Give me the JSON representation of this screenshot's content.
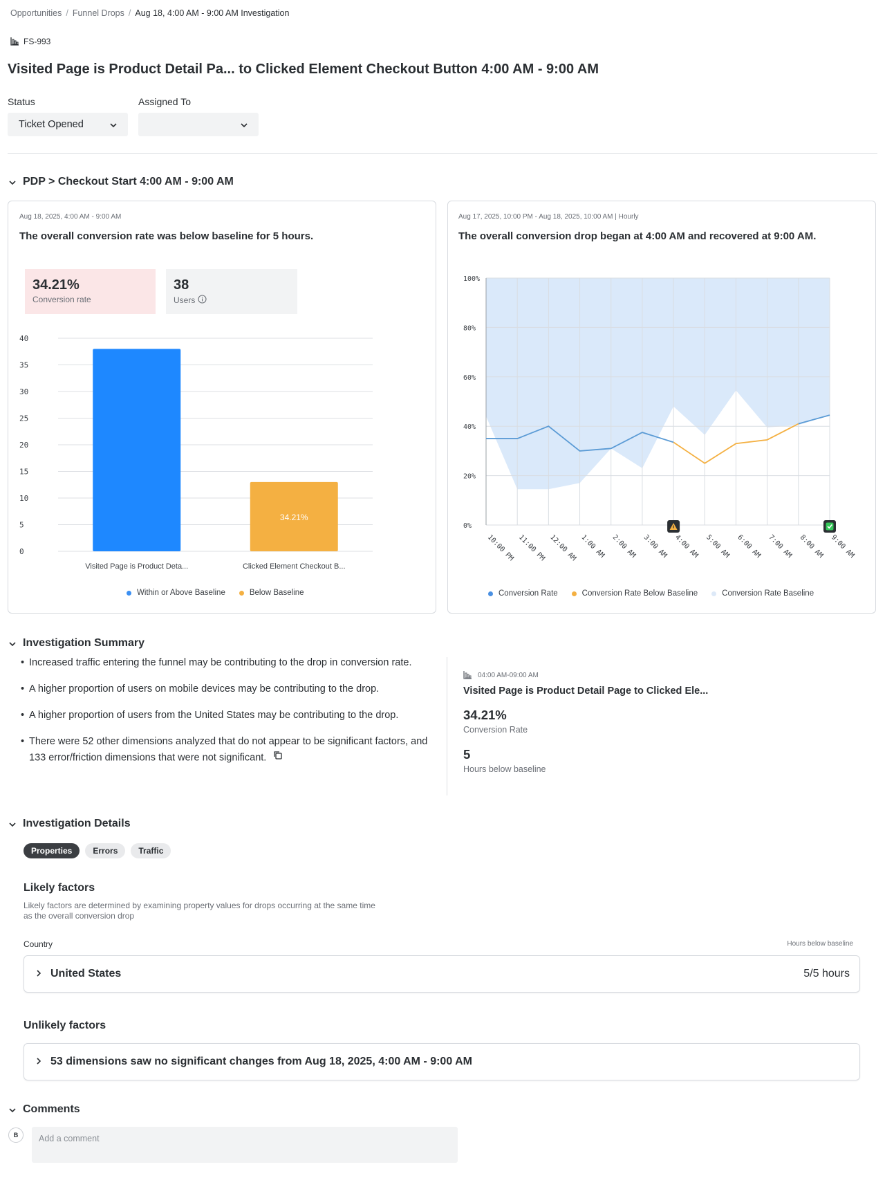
{
  "breadcrumb": {
    "items": [
      "Opportunities",
      "Funnel Drops"
    ],
    "current": "Aug 18, 4:00 AM - 9:00 AM Investigation"
  },
  "ticket": {
    "id": "FS-993"
  },
  "title": "Visited Page is Product Detail Pa...  to Clicked Element Checkout Button 4:00 AM - 9:00 AM",
  "status": {
    "label": "Status",
    "value": "Ticket Opened"
  },
  "assigned": {
    "label": "Assigned To",
    "value": ""
  },
  "section_funnel": {
    "title": "PDP > Checkout Start 4:00 AM - 9:00 AM"
  },
  "left_card": {
    "date": "Aug 18, 2025, 4:00 AM - 9:00 AM",
    "headline": "The overall conversion rate was below baseline for 5 hours.",
    "stat1": {
      "value": "34.21%",
      "label": "Conversion rate"
    },
    "stat2": {
      "value": "38",
      "label": "Users"
    },
    "legend": [
      "Within or Above Baseline",
      "Below Baseline"
    ]
  },
  "right_card": {
    "date": "Aug 17, 2025, 10:00 PM - Aug 18, 2025, 10:00 AM | Hourly",
    "headline": "The overall conversion drop began at 4:00 AM and recovered at 9:00 AM.",
    "legend": [
      "Conversion Rate",
      "Conversion Rate Below Baseline",
      "Conversion Rate Baseline"
    ]
  },
  "chart_data": [
    {
      "type": "bar",
      "categories": [
        "Visited Page is Product Deta...",
        "Clicked Element Checkout B..."
      ],
      "values": [
        38,
        13
      ],
      "bar_labels": [
        "",
        "34.21%"
      ],
      "colors": [
        "#1e88ff",
        "#f4b042"
      ],
      "ylim": [
        0,
        40
      ],
      "yticks": [
        0,
        5,
        10,
        15,
        20,
        25,
        30,
        35,
        40
      ],
      "legend": [
        "Within or Above Baseline",
        "Below Baseline"
      ]
    },
    {
      "type": "line",
      "x": [
        "10:00 PM",
        "11:00 PM",
        "12:00 AM",
        "1:00 AM",
        "2:00 AM",
        "3:00 AM",
        "4:00 AM",
        "5:00 AM",
        "6:00 AM",
        "7:00 AM",
        "8:00 AM",
        "9:00 AM"
      ],
      "yticks": [
        "0%",
        "20%",
        "40%",
        "60%",
        "80%",
        "100%"
      ],
      "ylim": [
        0,
        100
      ],
      "series": [
        {
          "name": "Conversion Rate",
          "values": [
            35,
            35,
            40,
            30,
            31,
            37.5,
            33.5,
            25,
            33,
            34.5,
            41,
            44.5
          ],
          "color": "#5b9bd5"
        },
        {
          "name": "Conversion Rate Below Baseline",
          "range": [
            6,
            10
          ],
          "color": "#f4b042"
        },
        {
          "name": "Conversion Rate Baseline",
          "lower": [
            44,
            14.5,
            14.5,
            17,
            31,
            23,
            48,
            36.5,
            54.5,
            39.5,
            40.5,
            44.5
          ],
          "upper": [
            100,
            100,
            100,
            100,
            100,
            100,
            100,
            100,
            100,
            100,
            100,
            100
          ],
          "color": "#d6e7fa"
        }
      ],
      "markers": [
        {
          "at": "4:00 AM",
          "icon": "warning-icon"
        },
        {
          "at": "9:00 AM",
          "icon": "check-icon"
        }
      ]
    }
  ],
  "section_summary": {
    "title": "Investigation Summary"
  },
  "summary": {
    "items": [
      "Increased traffic entering the funnel may be contributing to the drop in conversion rate.",
      "A higher proportion of users on mobile devices may be contributing to the drop.",
      "A higher proportion of users from the United States may be contributing to the drop.",
      "There were 52 other dimensions analyzed that do not appear to be significant factors, and 133 error/friction dimensions that were not significant."
    ],
    "side": {
      "time": "04:00 AM-09:00 AM",
      "title": "Visited Page is Product Detail Page to Clicked Ele...",
      "rate_value": "34.21%",
      "rate_label": "Conversion Rate",
      "hours_value": "5",
      "hours_label": "Hours below baseline"
    }
  },
  "section_details": {
    "title": "Investigation Details"
  },
  "tabs": [
    "Properties",
    "Errors",
    "Traffic"
  ],
  "likely": {
    "title": "Likely factors",
    "desc1": "Likely factors are determined by examining property values for drops occurring at the same time",
    "desc2": "as the overall conversion drop",
    "col_left": "Country",
    "col_right": "Hours below baseline",
    "row_label": "United States",
    "row_value": "5/5 hours"
  },
  "unlikely": {
    "title": "Unlikely factors",
    "row_label": "53 dimensions saw no significant changes from Aug 18, 2025, 4:00 AM - 9:00 AM"
  },
  "section_comments": {
    "title": "Comments"
  },
  "comment": {
    "avatar": "B",
    "placeholder": "Add a comment"
  }
}
